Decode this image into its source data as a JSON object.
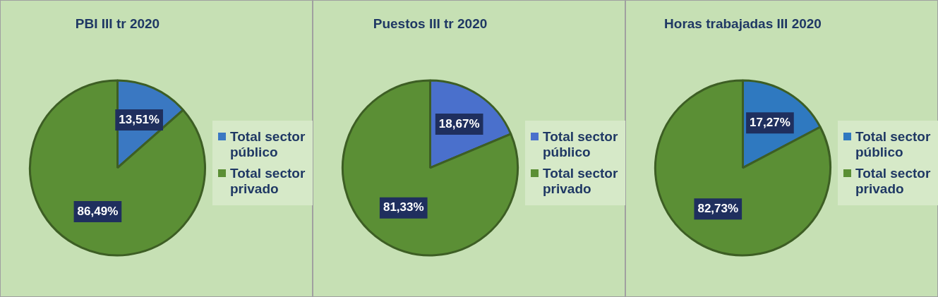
{
  "chart_data": [
    {
      "type": "pie",
      "title": "PBI III tr 2020",
      "categories": [
        "Total sector público",
        "Total sector privado"
      ],
      "values": [
        13.51,
        86.49
      ],
      "colors": [
        "#3a78c2",
        "#5b8f35"
      ],
      "value_labels": [
        "13,51%",
        "86,49%"
      ],
      "legend": "right"
    },
    {
      "type": "pie",
      "title": "Puestos III tr 2020",
      "categories": [
        "Total sector público",
        "Total sector privado"
      ],
      "values": [
        18.67,
        81.33
      ],
      "colors": [
        "#4a70cc",
        "#5b8f35"
      ],
      "value_labels": [
        "18,67%",
        "81,33%"
      ],
      "legend": "right"
    },
    {
      "type": "pie",
      "title": "Horas trabajadas III 2020",
      "categories": [
        "Total sector público",
        "Total sector privado"
      ],
      "values": [
        17.27,
        82.73
      ],
      "colors": [
        "#2f79c0",
        "#5b8f35"
      ],
      "value_labels": [
        "17,27%",
        "82,73%"
      ],
      "legend": "right"
    }
  ]
}
